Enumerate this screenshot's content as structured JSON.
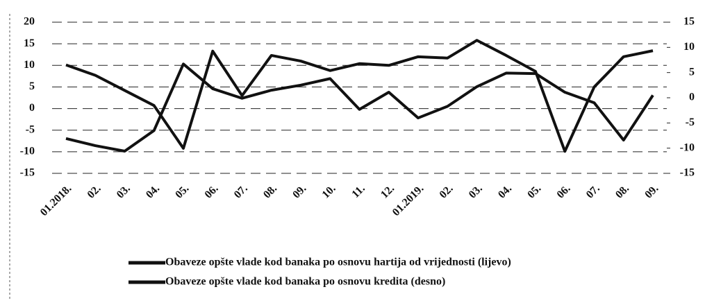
{
  "chart_data": {
    "type": "line",
    "categories": [
      "01.2018.",
      "02.",
      "03.",
      "04.",
      "05.",
      "06.",
      "07.",
      "08.",
      "09.",
      "10.",
      "11.",
      "12.",
      "01.2019.",
      "02.",
      "03.",
      "04.",
      "05.",
      "06.",
      "07.",
      "08.",
      "09."
    ],
    "series": [
      {
        "name": "Obaveze opšte vlade kod banaka po osnovu hartija od vrijednosti (lijevo)",
        "color": "#111111",
        "values": [
          10.1,
          7.7,
          4.2,
          0.7,
          -9.2,
          13.3,
          3.0,
          12.3,
          11.0,
          8.8,
          10.4,
          10.0,
          12.0,
          11.7,
          15.8,
          12.3,
          8.6,
          -9.9,
          5.0,
          12.0,
          13.4
        ]
      },
      {
        "name": "Obaveze opšte vlade kod banaka po osnovu kredita (desno)",
        "color": "#111111",
        "axis": "y2",
        "values": [
          -8.1,
          -9.5,
          -10.6,
          -6.5,
          6.7,
          1.8,
          -0.1,
          1.5,
          2.5,
          3.8,
          -2.3,
          1.1,
          -4.0,
          -1.7,
          2.2,
          4.9,
          4.8,
          1.1,
          -1.0,
          -8.4,
          0.5
        ]
      }
    ],
    "ylim": [
      -15,
      20
    ],
    "yticks": [
      -15,
      -10,
      -5,
      0,
      5,
      10,
      15,
      20
    ],
    "y2lim": [
      -15,
      15
    ],
    "y2ticks": [
      -15,
      -10,
      -5,
      0,
      5,
      10,
      15
    ],
    "grid": true
  }
}
